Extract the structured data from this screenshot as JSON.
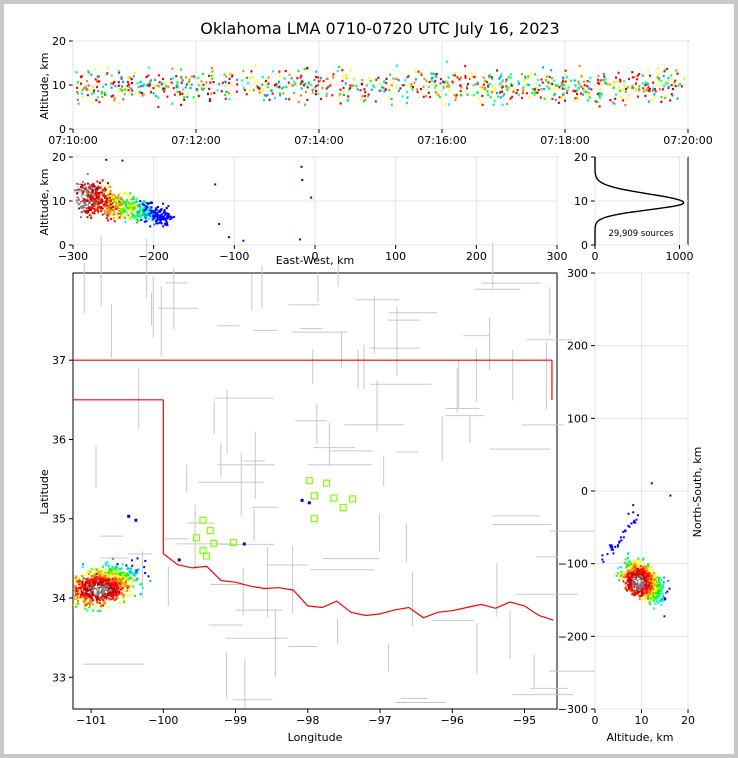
{
  "chart_data": [
    {
      "panel": "time-altitude",
      "type": "scatter",
      "title": "Oklahoma LMA 0710-0720 UTC July 16, 2023",
      "ylabel": "Altitude, km",
      "ylim": [
        0,
        20
      ],
      "yticks": [
        "0",
        "10",
        "20"
      ],
      "xticks": [
        "07:10:00",
        "07:12:00",
        "07:14:00",
        "07:16:00",
        "07:18:00",
        "07:20:00"
      ],
      "grid": true
    },
    {
      "panel": "east-west-altitude",
      "type": "scatter",
      "xlabel": "East-West, km",
      "ylabel": "Altitude, km",
      "xlim": [
        -300,
        300
      ],
      "ylim": [
        0,
        20
      ],
      "xticks": [
        "−300",
        "−200",
        "−100",
        "0",
        "100",
        "200",
        "300"
      ],
      "yticks": [
        "0",
        "10",
        "20"
      ],
      "grid": true
    },
    {
      "panel": "altitude-histogram",
      "type": "line",
      "annotation": "29,909 sources",
      "xlim": [
        0,
        1100
      ],
      "ylim": [
        0,
        20
      ],
      "xticks": [
        "0",
        "1000"
      ],
      "yticks": [
        "0",
        "10",
        "20"
      ],
      "grid": true
    },
    {
      "panel": "plan-view-map",
      "type": "scatter",
      "xlabel": "Longitude",
      "ylabel": "Latitude",
      "xlim": [
        -101.25,
        -94.55
      ],
      "ylim": [
        32.6,
        38.1
      ],
      "xticks": [
        "−101",
        "−100",
        "−99",
        "−98",
        "−97",
        "−96",
        "−95"
      ],
      "yticks": [
        "33",
        "34",
        "35",
        "36",
        "37"
      ],
      "station_markers": [
        {
          "lon": -99.54,
          "lat": 34.76
        },
        {
          "lon": -99.45,
          "lat": 34.98
        },
        {
          "lon": -99.45,
          "lat": 34.6
        },
        {
          "lon": -99.4,
          "lat": 34.53
        },
        {
          "lon": -99.35,
          "lat": 34.85
        },
        {
          "lon": -99.3,
          "lat": 34.69
        },
        {
          "lon": -99.03,
          "lat": 34.7
        },
        {
          "lon": -97.98,
          "lat": 35.48
        },
        {
          "lon": -97.91,
          "lat": 35.29
        },
        {
          "lon": -97.91,
          "lat": 35.0
        },
        {
          "lon": -97.74,
          "lat": 35.45
        },
        {
          "lon": -97.64,
          "lat": 35.26
        },
        {
          "lon": -97.51,
          "lat": 35.14
        },
        {
          "lon": -97.38,
          "lat": 35.25
        }
      ],
      "border_color": "#ff0000",
      "county_color": "#c8c8c8",
      "marker_color": "#7fff00"
    },
    {
      "panel": "north-south-altitude",
      "type": "scatter",
      "xlabel": "Altitude, km",
      "ylabel": "North-South, km",
      "xlim": [
        0,
        20
      ],
      "ylim": [
        -300,
        300
      ],
      "xticks": [
        "0",
        "10",
        "20"
      ],
      "yticks": [
        "−300",
        "−200",
        "−100",
        "0",
        "100",
        "200",
        "300"
      ],
      "grid": true
    }
  ],
  "colors": [
    "#0000ff",
    "#00a0ff",
    "#00ffc0",
    "#00ff00",
    "#ffff00",
    "#ff8000",
    "#ff0000",
    "#c00000",
    "#808080",
    "#ffffff"
  ]
}
